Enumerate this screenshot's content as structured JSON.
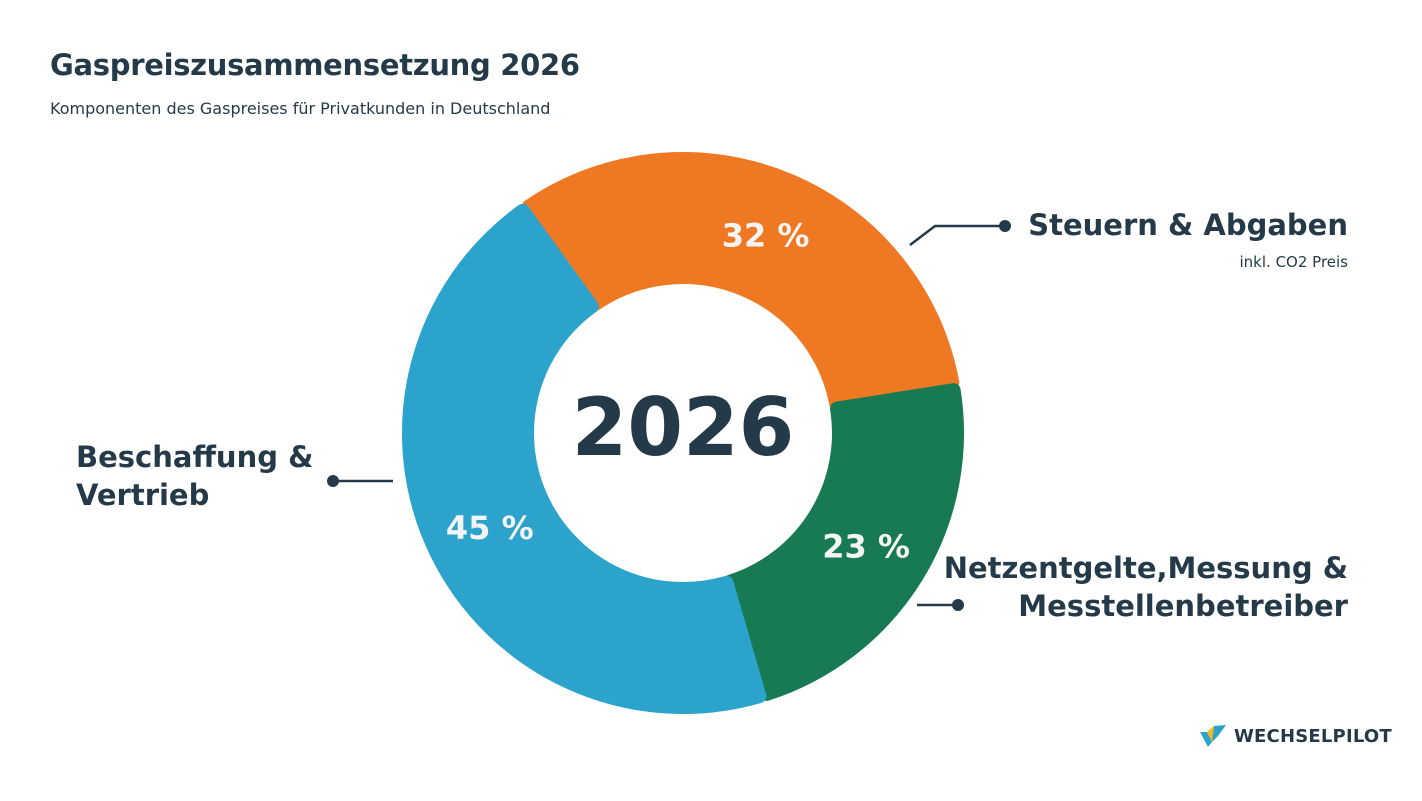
{
  "header": {
    "title": "Gaspreiszusammensetzung 2026",
    "subtitle": "Komponenten des Gaspreises für Privatkunden in Deutschland"
  },
  "chart_data": {
    "type": "pie",
    "subtype": "donut",
    "center_label": "2026",
    "slices": [
      {
        "name": "Steuern & Abgaben",
        "note": "inkl. CO2 Preis",
        "value": 32,
        "label": "32 %",
        "color": "#ef7823"
      },
      {
        "name": "Netzentgelte,Messung & Messtellenbetreiber",
        "value": 23,
        "label": "23 %",
        "color": "#177a53"
      },
      {
        "name": "Beschaffung & Vertrieb",
        "value": 45,
        "label": "45 %",
        "color": "#2ba3cd"
      }
    ]
  },
  "brand": {
    "name": "WECHSELPILOT"
  },
  "colors": {
    "text": "#253a48",
    "label_on_slice": "#f4f4f4"
  }
}
